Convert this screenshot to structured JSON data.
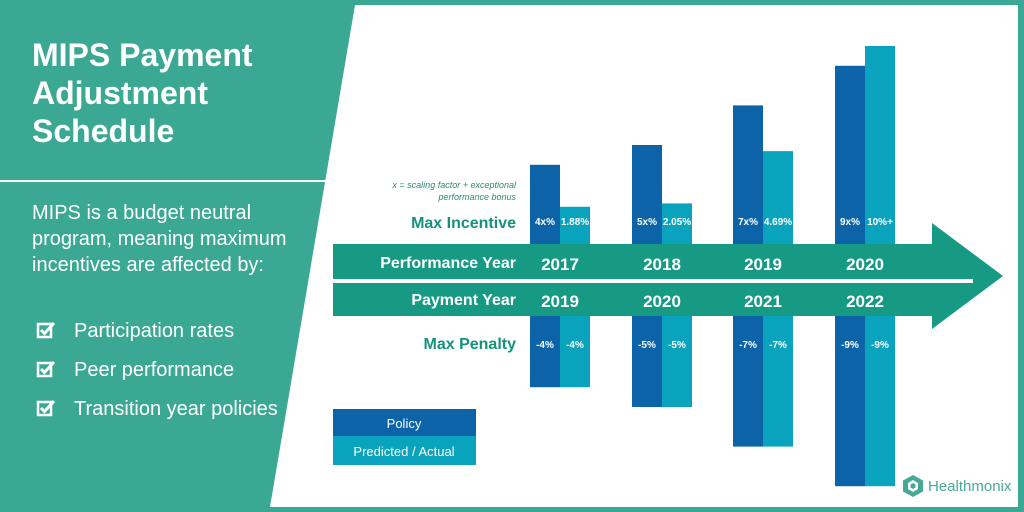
{
  "panel": {
    "title_lines": [
      "MIPS Payment",
      "Adjustment",
      "Schedule"
    ],
    "description": "MIPS is a budget neutral program, meaning maximum incentives are affected by:",
    "bullets": [
      "Participation rates",
      "Peer performance",
      "Transition year policies"
    ]
  },
  "brand": {
    "name": "Healthmonix",
    "color": "#47a995"
  },
  "colors": {
    "panel_bg": "#3aa892",
    "arrow": "#179a84",
    "policy": "#0c63a8",
    "predicted": "#0aa3be",
    "label_teal": "#14927a",
    "note": "#2a8a76"
  },
  "chart_data": {
    "type": "bar",
    "title": "",
    "row_labels": {
      "incentive": "Max Incentive",
      "performance": "Performance Year",
      "payment": "Payment Year",
      "penalty": "Max Penalty"
    },
    "note_lines": [
      "x =  scaling factor + exceptional",
      "performance bonus"
    ],
    "categories": [
      {
        "performance_year": "2017",
        "payment_year": "2019"
      },
      {
        "performance_year": "2018",
        "payment_year": "2020"
      },
      {
        "performance_year": "2019",
        "payment_year": "2021"
      },
      {
        "performance_year": "2020",
        "payment_year": "2022"
      }
    ],
    "series": [
      {
        "name": "Policy",
        "incentive_values": [
          4,
          5,
          7,
          9
        ],
        "incentive_labels": [
          "4x%",
          "5x%",
          "7x%",
          "9x%"
        ],
        "penalty_values": [
          -4,
          -5,
          -7,
          -9
        ],
        "penalty_labels": [
          "-4%",
          "-5%",
          "-7%",
          "-9%"
        ]
      },
      {
        "name": "Predicted / Actual",
        "incentive_values": [
          1.88,
          2.05,
          4.69,
          10
        ],
        "incentive_labels": [
          "1.88%",
          "2.05%",
          "4.69%",
          "10%+"
        ],
        "penalty_values": [
          -4,
          -5,
          -7,
          -9
        ],
        "penalty_labels": [
          "-4%",
          "-5%",
          "-7%",
          "-9%"
        ]
      }
    ],
    "legend": {
      "placement": "bottom-left",
      "entries": [
        "Policy",
        "Predicted / Actual"
      ]
    }
  }
}
